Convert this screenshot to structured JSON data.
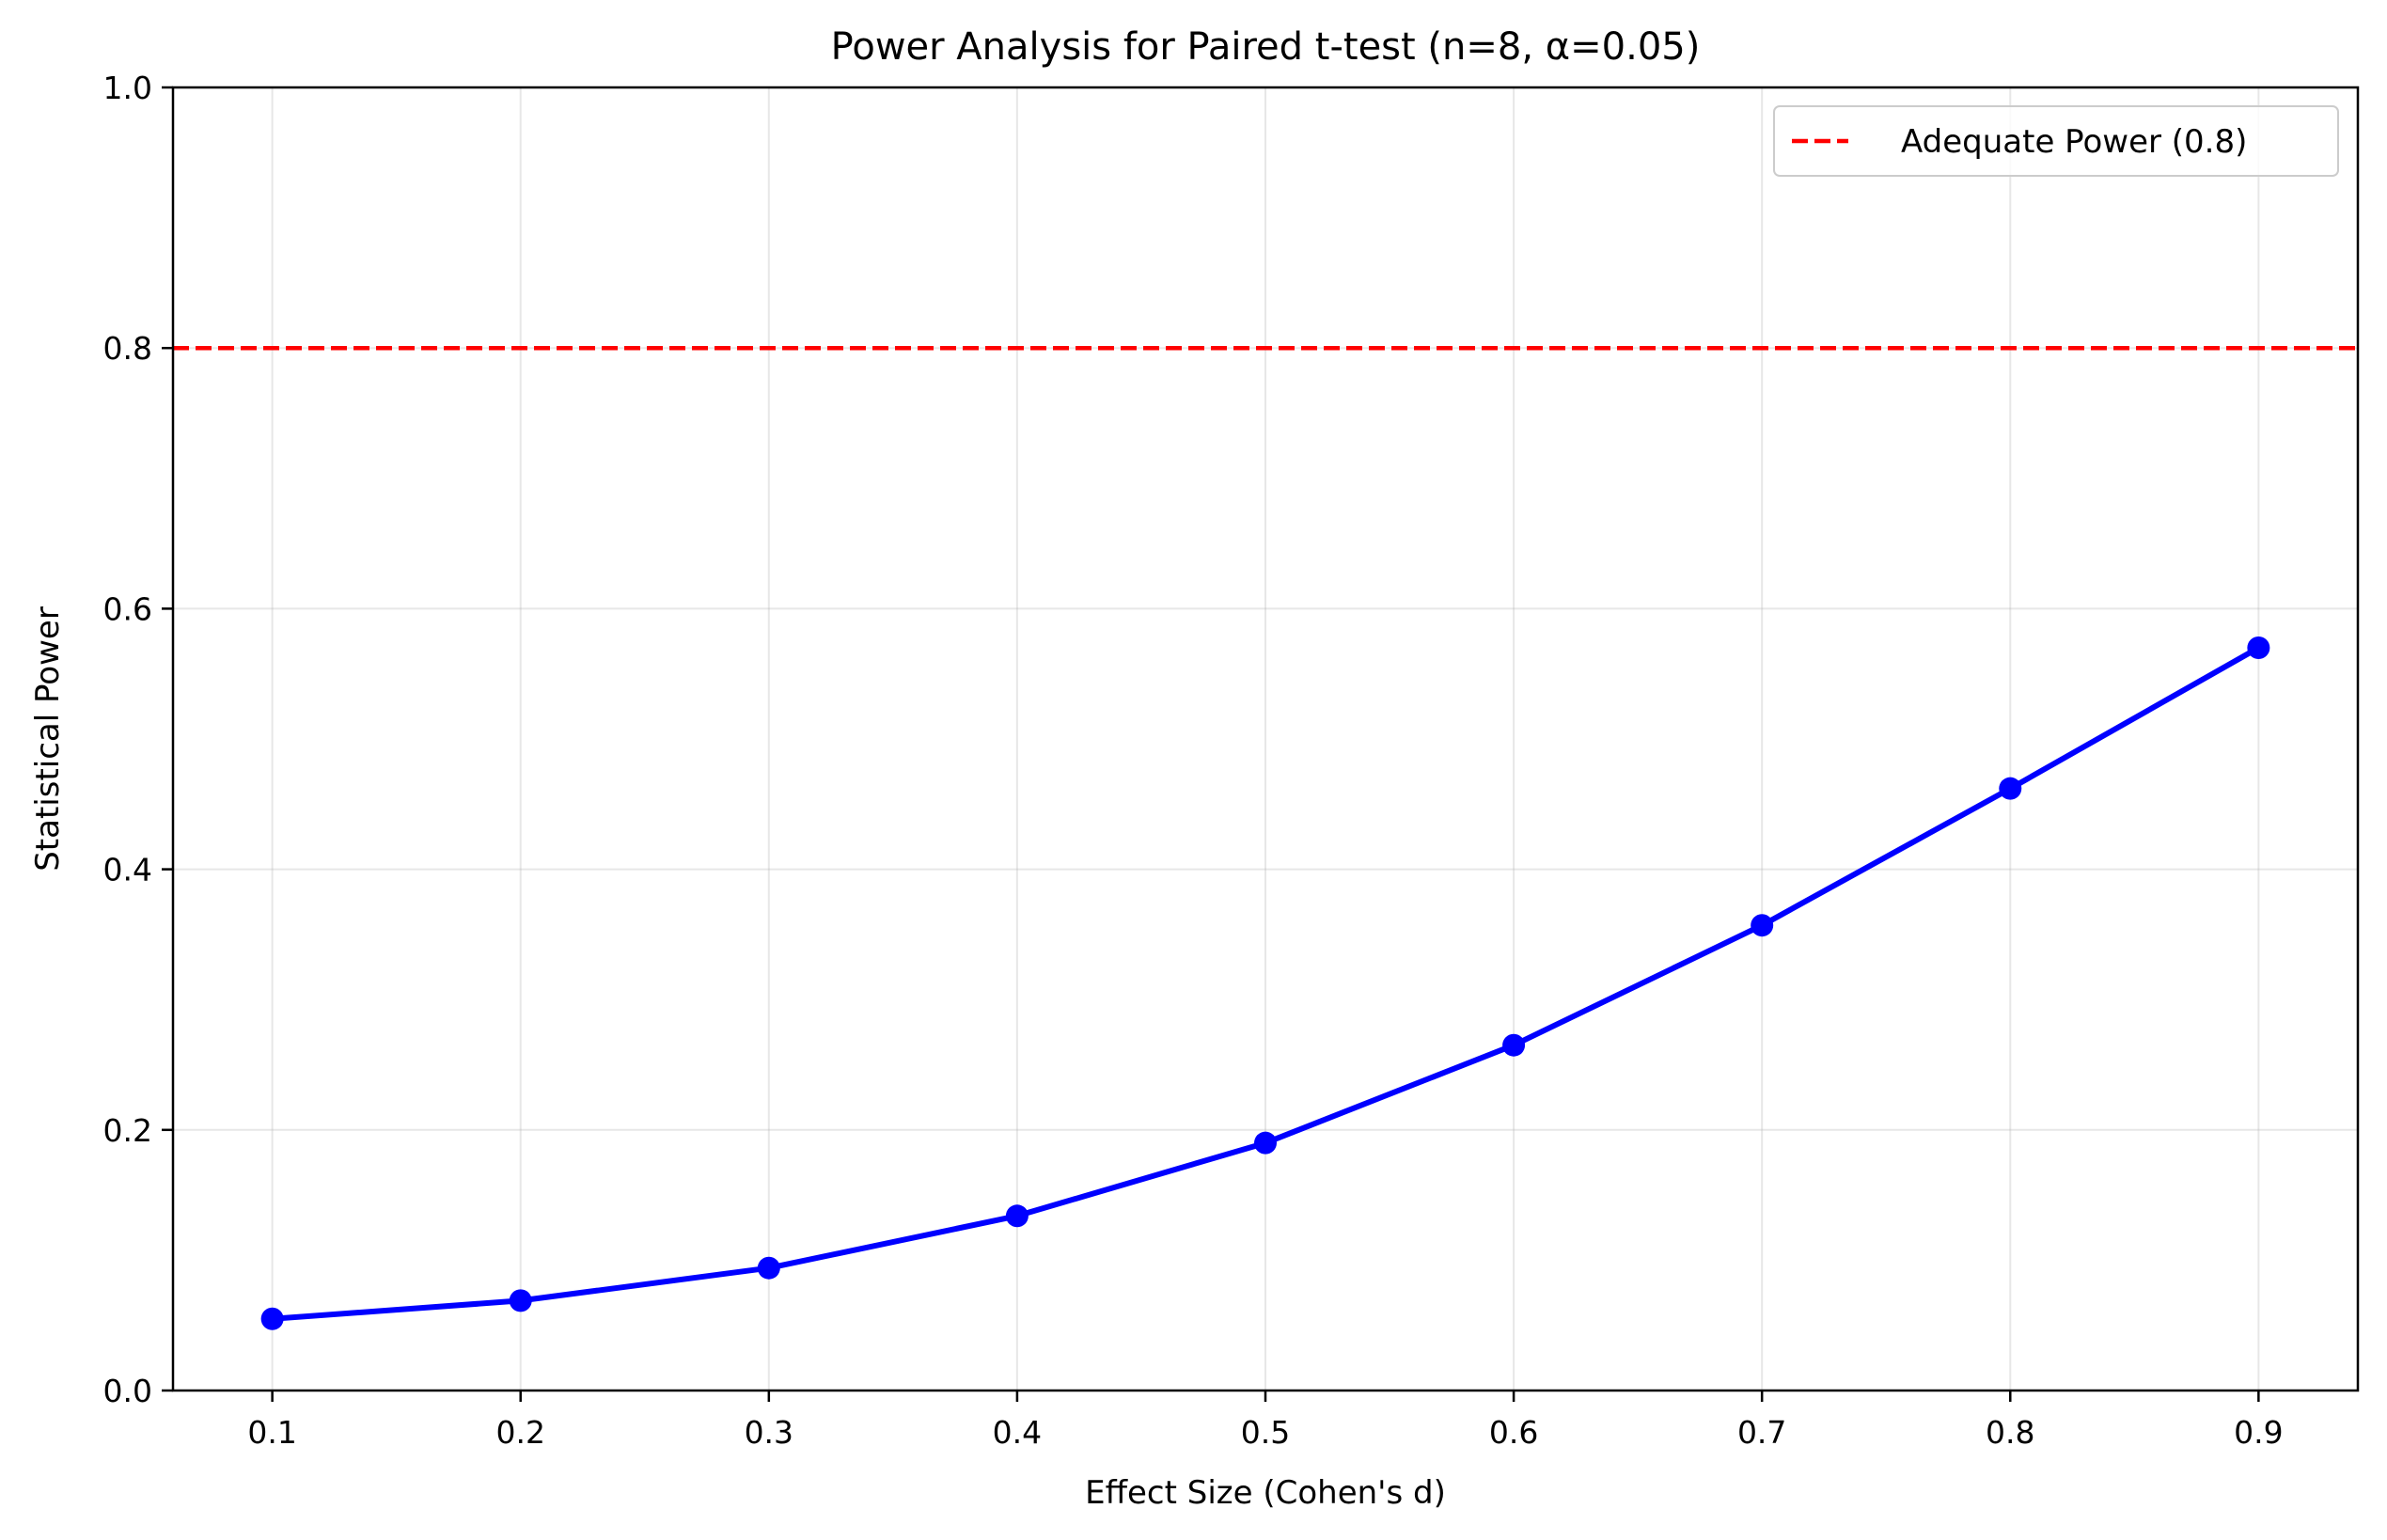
{
  "chart_data": {
    "type": "line",
    "title": "Power Analysis for Paired t-test (n=8, α=0.05)",
    "xlabel": "Effect Size (Cohen's d)",
    "ylabel": "Statistical Power",
    "xlim": [
      0.06,
      0.94
    ],
    "ylim": [
      0.0,
      1.0
    ],
    "grid": true,
    "x_ticks": [
      0.1,
      0.2,
      0.3,
      0.4,
      0.5,
      0.6,
      0.7,
      0.8,
      0.9
    ],
    "x_tick_labels": [
      "0.1",
      "0.2",
      "0.3",
      "0.4",
      "0.5",
      "0.6",
      "0.7",
      "0.8",
      "0.9"
    ],
    "y_ticks": [
      0.0,
      0.2,
      0.4,
      0.6,
      0.8,
      1.0
    ],
    "y_tick_labels": [
      "0.0",
      "0.2",
      "0.4",
      "0.6",
      "0.8",
      "1.0"
    ],
    "series": [
      {
        "name": "Power",
        "color": "#0000ff",
        "marker": "circle",
        "x": [
          0.1,
          0.2,
          0.3,
          0.4,
          0.5,
          0.6,
          0.7,
          0.8,
          0.9
        ],
        "y": [
          0.055,
          0.069,
          0.094,
          0.134,
          0.19,
          0.265,
          0.357,
          0.462,
          0.57
        ]
      }
    ],
    "reference_lines": [
      {
        "orientation": "horizontal",
        "y": 0.8,
        "label": "Adequate Power (0.8)",
        "color": "#ff0000",
        "style": "dashed"
      }
    ],
    "legend": {
      "position": "top-right",
      "entries": [
        "Adequate Power (0.8)"
      ]
    }
  }
}
